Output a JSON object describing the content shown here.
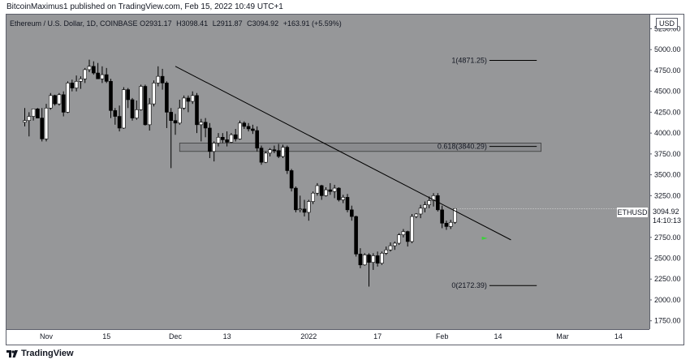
{
  "header": {
    "text": "BitcoinMaximus1 published on TradingView.com, Feb 15, 2022 10:49 UTC+1"
  },
  "legend": {
    "symbol": "Ethereum / U.S. Dollar, 1D, COINBASE",
    "o_label": "O",
    "o_value": "2931.17",
    "h_label": "H",
    "h_value": "3098.41",
    "l_label": "L",
    "l_value": "2911.87",
    "c_label": "C",
    "c_value": "3094.92",
    "change": "+163.91 (+5.59%)"
  },
  "price_axis": {
    "currency_badge": "USD"
  },
  "last_price": {
    "symbol": "ETHUSD",
    "price": "3094.92",
    "countdown": "14:10:13"
  },
  "footer": {
    "brand": "TradingView"
  },
  "colors": {
    "plot_background": "#969799",
    "candle_up": "#ffffff",
    "candle_down": "#000000",
    "trendline": "#000000",
    "zone_fill": "#8a8b8e",
    "arrow": "#3ad13a"
  },
  "chart_data": {
    "type": "candlestick",
    "title": "Ethereum / U.S. Dollar, 1D, COINBASE",
    "ylim": [
      1650,
      5420
    ],
    "y_ticks": [
      1750,
      2000,
      2250,
      2500,
      2750,
      3000,
      3250,
      3500,
      3750,
      4000,
      4250,
      4500,
      4750,
      5000,
      5250
    ],
    "y_tick_labels": [
      "1750.00",
      "2000.00",
      "2250.00",
      "2500.00",
      "2750.00",
      "3000.00",
      "3250.00",
      "3500.00",
      "3750.00",
      "4000.00",
      "4250.00",
      "4500.00",
      "4750.00",
      "5000.00",
      "5250.00"
    ],
    "x_tick_labels": [
      {
        "label": "Nov",
        "day": 0
      },
      {
        "label": "15",
        "day": 14
      },
      {
        "label": "Dec",
        "day": 30
      },
      {
        "label": "13",
        "day": 42
      },
      {
        "label": "2022",
        "day": 61
      },
      {
        "label": "17",
        "day": 77
      },
      {
        "label": "Feb",
        "day": 92
      },
      {
        "label": "14",
        "day": 105
      },
      {
        "label": "Mar",
        "day": 120
      },
      {
        "label": "14",
        "day": 133
      }
    ],
    "start_date": "2021-10-26",
    "ohlc": [
      [
        4130,
        4300,
        4080,
        4150
      ],
      [
        4150,
        4250,
        3960,
        4200
      ],
      [
        4200,
        4290,
        4150,
        4290
      ],
      [
        4290,
        4300,
        4180,
        4180
      ],
      [
        4180,
        4300,
        3900,
        3930
      ],
      [
        3930,
        4350,
        3900,
        4300
      ],
      [
        4300,
        4480,
        4280,
        4450
      ],
      [
        4450,
        4460,
        4330,
        4350
      ],
      [
        4350,
        4480,
        4330,
        4460
      ],
      [
        4460,
        4500,
        4200,
        4250
      ],
      [
        4250,
        4620,
        4240,
        4600
      ],
      [
        4600,
        4640,
        4500,
        4540
      ],
      [
        4540,
        4690,
        4500,
        4620
      ],
      [
        4620,
        4680,
        4530,
        4650
      ],
      [
        4650,
        4780,
        4600,
        4760
      ],
      [
        4760,
        4880,
        4730,
        4800
      ],
      [
        4800,
        4860,
        4700,
        4720
      ],
      [
        4720,
        4840,
        4650,
        4650
      ],
      [
        4650,
        4800,
        4600,
        4700
      ],
      [
        4700,
        4780,
        4600,
        4620
      ],
      [
        4620,
        4650,
        4180,
        4270
      ],
      [
        4270,
        4300,
        4100,
        4200
      ],
      [
        4200,
        4330,
        4020,
        4060
      ],
      [
        4060,
        4550,
        4050,
        4520
      ],
      [
        4520,
        4540,
        4300,
        4400
      ],
      [
        4400,
        4420,
        4150,
        4180
      ],
      [
        4180,
        4390,
        4160,
        4280
      ],
      [
        4280,
        4580,
        4270,
        4560
      ],
      [
        4560,
        4580,
        4090,
        4100
      ],
      [
        4100,
        4420,
        4030,
        4350
      ],
      [
        4350,
        4630,
        4320,
        4600
      ],
      [
        4600,
        4800,
        4560,
        4680
      ],
      [
        4680,
        4770,
        4520,
        4600
      ],
      [
        4600,
        4620,
        4060,
        4250
      ],
      [
        4250,
        4300,
        3580,
        4150
      ],
      [
        4150,
        4230,
        3980,
        4120
      ],
      [
        4120,
        4400,
        4100,
        4300
      ],
      [
        4300,
        4450,
        4280,
        4420
      ],
      [
        4420,
        4450,
        4250,
        4380
      ],
      [
        4380,
        4500,
        4350,
        4450
      ],
      [
        4450,
        4480,
        4000,
        4100
      ],
      [
        4100,
        4170,
        3900,
        4130
      ],
      [
        4130,
        4180,
        3950,
        4060
      ],
      [
        4060,
        4120,
        3700,
        3780
      ],
      [
        3780,
        3900,
        3660,
        3880
      ],
      [
        3880,
        4000,
        3840,
        3950
      ],
      [
        3950,
        4000,
        3880,
        3920
      ],
      [
        3920,
        4020,
        3840,
        3890
      ],
      [
        3890,
        4000,
        3880,
        3980
      ],
      [
        3980,
        4050,
        3900,
        3930
      ],
      [
        3930,
        4150,
        3920,
        4120
      ],
      [
        4120,
        4140,
        4050,
        4080
      ],
      [
        4080,
        4120,
        4020,
        4050
      ],
      [
        4050,
        4100,
        3990,
        4030
      ],
      [
        4030,
        4080,
        3780,
        3820
      ],
      [
        3820,
        3850,
        3620,
        3650
      ],
      [
        3650,
        3780,
        3640,
        3760
      ],
      [
        3760,
        3820,
        3720,
        3800
      ],
      [
        3800,
        3850,
        3760,
        3790
      ],
      [
        3790,
        3870,
        3700,
        3720
      ],
      [
        3720,
        3860,
        3700,
        3830
      ],
      [
        3830,
        3850,
        3510,
        3550
      ],
      [
        3550,
        3570,
        3300,
        3340
      ],
      [
        3340,
        3360,
        3050,
        3080
      ],
      [
        3080,
        3250,
        3050,
        3090
      ],
      [
        3090,
        3200,
        3000,
        3050
      ],
      [
        3050,
        3200,
        2950,
        3180
      ],
      [
        3180,
        3300,
        3150,
        3280
      ],
      [
        3280,
        3400,
        3250,
        3370
      ],
      [
        3370,
        3380,
        3200,
        3250
      ],
      [
        3250,
        3350,
        3240,
        3320
      ],
      [
        3320,
        3400,
        3260,
        3300
      ],
      [
        3300,
        3380,
        3220,
        3340
      ],
      [
        3340,
        3350,
        3180,
        3200
      ],
      [
        3200,
        3260,
        3160,
        3230
      ],
      [
        3230,
        3270,
        3050,
        3080
      ],
      [
        3080,
        3130,
        2950,
        3000
      ],
      [
        3000,
        3010,
        2520,
        2550
      ],
      [
        2550,
        2620,
        2380,
        2420
      ],
      [
        2420,
        2560,
        2410,
        2540
      ],
      [
        2540,
        2560,
        2160,
        2450
      ],
      [
        2450,
        2560,
        2360,
        2530
      ],
      [
        2530,
        2580,
        2400,
        2440
      ],
      [
        2440,
        2580,
        2420,
        2560
      ],
      [
        2560,
        2640,
        2540,
        2600
      ],
      [
        2600,
        2690,
        2580,
        2650
      ],
      [
        2650,
        2700,
        2600,
        2680
      ],
      [
        2680,
        2800,
        2660,
        2780
      ],
      [
        2780,
        2850,
        2750,
        2820
      ],
      [
        2820,
        2830,
        2640,
        2700
      ],
      [
        2700,
        3030,
        2680,
        3000
      ],
      [
        3000,
        3040,
        2980,
        3030
      ],
      [
        3030,
        3140,
        2980,
        3100
      ],
      [
        3100,
        3180,
        3050,
        3140
      ],
      [
        3140,
        3240,
        3100,
        3190
      ],
      [
        3190,
        3280,
        3120,
        3250
      ],
      [
        3250,
        3280,
        3060,
        3080
      ],
      [
        3080,
        3130,
        2860,
        2920
      ],
      [
        2920,
        2950,
        2840,
        2880
      ],
      [
        2880,
        2960,
        2850,
        2930
      ],
      [
        2931.17,
        3098.41,
        2911.87,
        3094.92
      ]
    ],
    "trendline": {
      "start": {
        "day": 30,
        "price": 4800
      },
      "end": {
        "day": 108,
        "price": 2720
      }
    },
    "resistance_zone": {
      "from_day": 31,
      "to_day": 115,
      "low": 3780,
      "high": 3880
    },
    "fib_levels": [
      {
        "label": "1(4871.25)",
        "price": 4871.25
      },
      {
        "label": "0.618(3840.29)",
        "price": 3840.29
      },
      {
        "label": "0(2172.39)",
        "price": 2172.39
      }
    ],
    "fib_line": {
      "from_day": 103,
      "to_day": 114
    },
    "arrow": {
      "day": 102,
      "price": 2740
    },
    "last_price_line": 3094.92
  }
}
